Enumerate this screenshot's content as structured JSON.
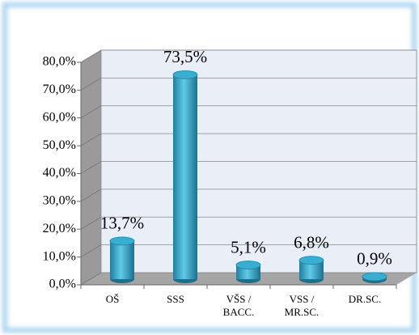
{
  "chart_data": {
    "type": "bar",
    "categories": [
      "OŠ",
      "SSS",
      "VŠS / BACC.",
      "VSS / MR.SC.",
      "DR.SC."
    ],
    "values": [
      13.7,
      73.5,
      5.1,
      6.8,
      0.9
    ],
    "value_labels": [
      "13,7%",
      "73,5%",
      "5,1%",
      "6,8%",
      "0,9%"
    ],
    "color": "#3aaed0",
    "ylim": [
      0,
      80
    ],
    "yticks": [
      {
        "value": 0,
        "label": "0,0%"
      },
      {
        "value": 10,
        "label": "10,0%"
      },
      {
        "value": 20,
        "label": "20,0%"
      },
      {
        "value": 30,
        "label": "30,0%"
      },
      {
        "value": 40,
        "label": "40,0%"
      },
      {
        "value": 50,
        "label": "50,0%"
      },
      {
        "value": 60,
        "label": "60,0%"
      },
      {
        "value": 70,
        "label": "70,0%"
      },
      {
        "value": 80,
        "label": "80,0%"
      }
    ],
    "grid": true
  }
}
